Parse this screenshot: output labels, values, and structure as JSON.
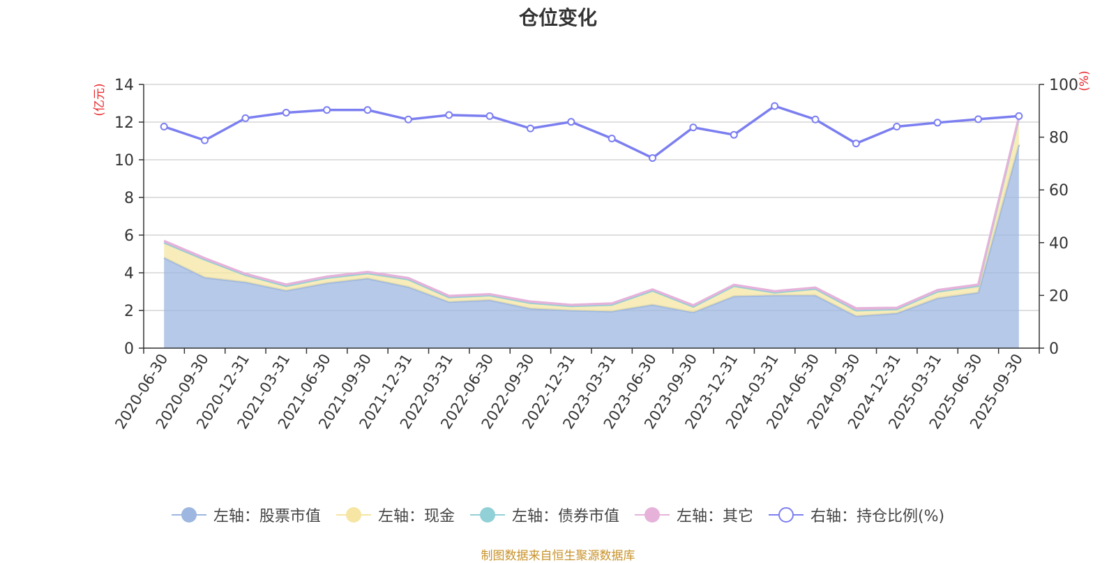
{
  "chart_data": {
    "type": "area",
    "title": "仓位变化",
    "left_axis": {
      "label": "(亿元)",
      "ylim": [
        0,
        14
      ],
      "ticks": [
        0,
        2,
        4,
        6,
        8,
        10,
        12,
        14
      ],
      "color": "#e8262b"
    },
    "right_axis": {
      "label": "(%)",
      "ylim": [
        0,
        100
      ],
      "ticks": [
        0,
        20,
        40,
        60,
        80,
        100
      ],
      "color": "#e8262b"
    },
    "categories": [
      "2020-06-30",
      "2020-09-30",
      "2020-12-31",
      "2021-03-31",
      "2021-06-30",
      "2021-09-30",
      "2021-12-31",
      "2022-03-31",
      "2022-06-30",
      "2022-09-30",
      "2022-12-31",
      "2023-03-31",
      "2023-06-30",
      "2023-09-30",
      "2023-12-31",
      "2024-03-31",
      "2024-06-30",
      "2024-09-30",
      "2024-12-31",
      "2025-03-31",
      "2025-06-30",
      "2025-09-30"
    ],
    "series": [
      {
        "name": "左轴：股票市值",
        "axis": "left",
        "stack": true,
        "color": "#9db7e0",
        "values": [
          4.8,
          3.75,
          3.5,
          3.05,
          3.45,
          3.7,
          3.25,
          2.45,
          2.55,
          2.1,
          2.0,
          1.95,
          2.3,
          1.9,
          2.75,
          2.8,
          2.8,
          1.7,
          1.85,
          2.65,
          2.95,
          10.8
        ]
      },
      {
        "name": "左轴：现金",
        "axis": "left",
        "stack": true,
        "color": "#f6e5a3",
        "values": [
          0.8,
          0.95,
          0.38,
          0.25,
          0.28,
          0.27,
          0.4,
          0.25,
          0.25,
          0.3,
          0.23,
          0.35,
          0.75,
          0.3,
          0.55,
          0.15,
          0.35,
          0.3,
          0.22,
          0.35,
          0.35,
          1.4
        ]
      },
      {
        "name": "左轴：债券市值",
        "axis": "left",
        "stack": true,
        "color": "#91d0d6",
        "values": [
          0,
          0,
          0,
          0,
          0,
          0,
          0,
          0,
          0,
          0,
          0,
          0,
          0,
          0,
          0,
          0,
          0,
          0,
          0,
          0,
          0,
          0
        ]
      },
      {
        "name": "左轴：其它",
        "axis": "left",
        "stack": true,
        "color": "#e6b2da",
        "values": [
          0.1,
          0.08,
          0.07,
          0.08,
          0.07,
          0.08,
          0.08,
          0.08,
          0.07,
          0.08,
          0.07,
          0.08,
          0.07,
          0.08,
          0.07,
          0.08,
          0.07,
          0.12,
          0.08,
          0.09,
          0.08,
          0.1
        ]
      },
      {
        "name": "右轴：持仓比例(%)",
        "axis": "right",
        "stack": false,
        "color": "#7b7ef0",
        "values": [
          84.0,
          78.8,
          87.2,
          89.3,
          90.3,
          90.3,
          86.7,
          88.4,
          88.0,
          83.3,
          85.8,
          79.5,
          72.1,
          83.7,
          80.9,
          91.8,
          86.7,
          77.6,
          84.0,
          85.5,
          86.8,
          88.0
        ]
      }
    ],
    "grid": true,
    "legend_position": "bottom"
  },
  "source_note": "制图数据来自恒生聚源数据库"
}
